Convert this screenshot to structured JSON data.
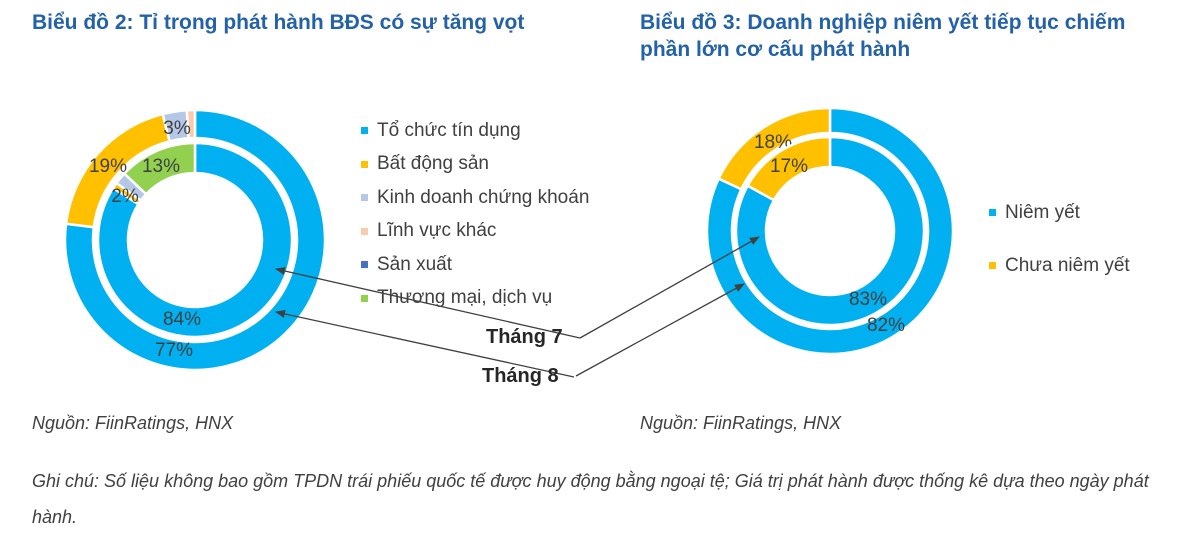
{
  "chart_data": [
    {
      "type": "pie",
      "subtype": "doughnut-two-ring",
      "title": "Biểu đồ 2: Tỉ trọng phát hành BĐS có sự tăng vọt",
      "categories": [
        "Tổ chức tín dụng",
        "Bất động sản",
        "Kinh doanh chứng khoán",
        "Lĩnh vực khác",
        "Sản xuất",
        "Thương mại, dịch vụ"
      ],
      "colors": [
        "#00B0F0",
        "#FFC000",
        "#B4C7E7",
        "#F8CBAD",
        "#4472C4",
        "#92D050"
      ],
      "series": [
        {
          "name": "Tháng 7",
          "ring": "inner",
          "values": [
            84,
            1,
            2,
            0,
            0,
            13
          ],
          "labels": [
            "84%",
            "",
            "2%",
            "",
            "",
            "13%"
          ]
        },
        {
          "name": "Tháng 8",
          "ring": "outer",
          "values": [
            77,
            19,
            3,
            1,
            0,
            0
          ],
          "labels": [
            "77%",
            "19%",
            "3%",
            "",
            "",
            ""
          ]
        }
      ],
      "legend_position": "right"
    },
    {
      "type": "pie",
      "subtype": "doughnut-two-ring",
      "title": "Biểu đồ 3: Doanh nghiệp niêm yết tiếp tục chiếm phần lớn cơ cấu phát hành",
      "categories": [
        "Niêm yết",
        "Chưa niêm yết"
      ],
      "colors": [
        "#00B0F0",
        "#FFC000"
      ],
      "series": [
        {
          "name": "Tháng 7",
          "ring": "inner",
          "values": [
            83,
            17
          ],
          "labels": [
            "83%",
            "17%"
          ]
        },
        {
          "name": "Tháng 8",
          "ring": "outer",
          "values": [
            82,
            18
          ],
          "labels": [
            "82%",
            "18%"
          ]
        }
      ],
      "legend_position": "right"
    }
  ],
  "left": {
    "title": "Biểu đồ 2: Tỉ trọng phát hành BĐS có sự tăng vọt",
    "legend": [
      {
        "label": "Tổ chức tín dụng",
        "color": "#00B0F0"
      },
      {
        "label": "Bất động sản",
        "color": "#FFC000"
      },
      {
        "label": "Kinh doanh chứng khoán",
        "color": "#B4C7E7"
      },
      {
        "label": "Lĩnh vực khác",
        "color": "#F8CBAD"
      },
      {
        "label": "Sản xuất",
        "color": "#4472C4"
      },
      {
        "label": "Thương mại, dịch vụ",
        "color": "#92D050"
      }
    ],
    "source": "Nguồn: FiinRatings, HNX"
  },
  "right": {
    "title": "Biểu đồ 3: Doanh nghiệp niêm yết tiếp tục chiếm phần lớn cơ cấu phát hành",
    "legend": [
      {
        "label": "Niêm yết",
        "color": "#00B0F0"
      },
      {
        "label": "Chưa niêm yết",
        "color": "#FFC000"
      }
    ],
    "source": "Nguồn: FiinRatings, HNX"
  },
  "annotations": {
    "month7": "Tháng 7",
    "month8": "Tháng 8"
  },
  "note": "Ghi chú: Số liệu không bao gồm TPDN trái phiếu quốc tế được huy động bằng ngoại tệ; Giá trị phát hành được thống kê dựa theo ngày phát hành."
}
